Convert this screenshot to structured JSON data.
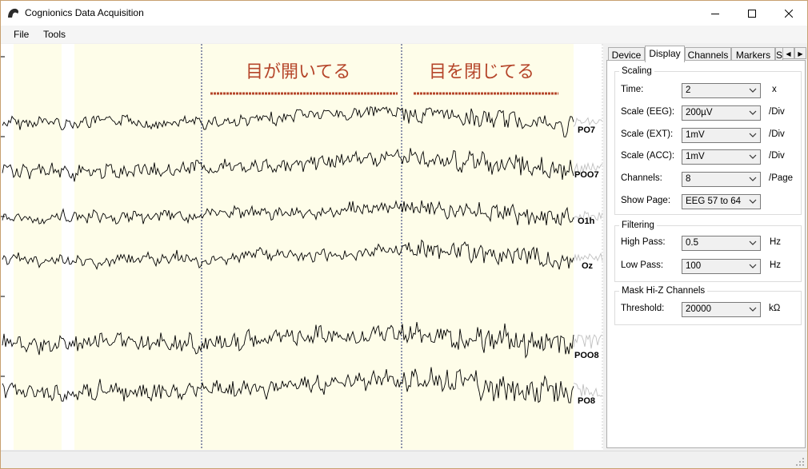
{
  "window": {
    "title": "Cognionics Data Acquisition"
  },
  "menu": [
    "File",
    "Tools"
  ],
  "annotations": {
    "eyes_open": "目が開いてる",
    "eyes_closed": "目を閉じてる"
  },
  "channels": [
    "PO7",
    "POO7",
    "O1h",
    "Oz",
    "POO8",
    "PO8"
  ],
  "tabs": [
    "Device",
    "Display",
    "Channels",
    "Markers",
    "S"
  ],
  "active_tab": "Display",
  "scaling": {
    "title": "Scaling",
    "rows": [
      {
        "label": "Time:",
        "value": "2",
        "unit": "x"
      },
      {
        "label": "Scale (EEG):",
        "value": "200µV",
        "unit": "/Div"
      },
      {
        "label": "Scale (EXT):",
        "value": "1mV",
        "unit": "/Div"
      },
      {
        "label": "Scale (ACC):",
        "value": "1mV",
        "unit": "/Div"
      },
      {
        "label": "Channels:",
        "value": "8",
        "unit": "/Page"
      },
      {
        "label": "Show Page:",
        "value": "EEG 57 to 64",
        "unit": ""
      }
    ]
  },
  "filtering": {
    "title": "Filtering",
    "rows": [
      {
        "label": "High Pass:",
        "value": "0.5",
        "unit": "Hz"
      },
      {
        "label": "Low Pass:",
        "value": "100",
        "unit": "Hz"
      }
    ]
  },
  "mask": {
    "title": "Mask Hi-Z Channels",
    "rows": [
      {
        "label": "Threshold:",
        "value": "20000",
        "unit": "kΩ"
      }
    ]
  },
  "colors": {
    "highlight": "#fefde9",
    "divider": "#1e2a6e",
    "annotation": "#b5452a",
    "trace": "#000000",
    "faded_trace": "#c0c0c0"
  }
}
